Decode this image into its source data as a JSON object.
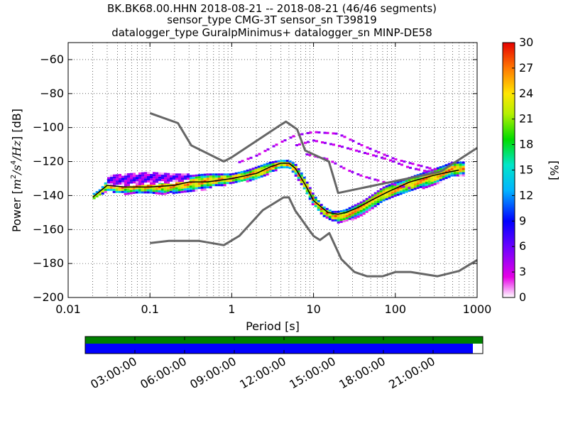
{
  "chart_data": [
    {
      "type": "heatmap",
      "title_lines": [
        "BK.BK68.00.HHN   2018-08-21 -- 2018-08-21  (46/46 segments)",
        "sensor_type CMG-3T sensor_sn T39819",
        "datalogger_type GuralpMinimus+ datalogger_sn MINP-DE58"
      ],
      "xlabel": "Period [s]",
      "ylabel": "Power [m²/s⁴/Hz] [dB]",
      "ylabel_parts": {
        "prefix": "Power [",
        "unit_base": "m",
        "unit_mid": "/s",
        "unit_hz": "/Hz",
        "sup2": "2",
        "sup4": "4",
        "suffix": "] [dB]"
      },
      "x_scale": "log",
      "xlim": [
        0.01,
        1000
      ],
      "ylim": [
        -200,
        -50
      ],
      "x_ticks": [
        0.01,
        0.1,
        1,
        10,
        100,
        1000
      ],
      "x_tick_labels": [
        "0.01",
        "0.1",
        "1",
        "10",
        "100",
        "1000"
      ],
      "y_ticks": [
        -200,
        -180,
        -160,
        -140,
        -120,
        -100,
        -80,
        -60
      ],
      "y_tick_labels": [
        "−200",
        "−180",
        "−160",
        "−140",
        "−120",
        "−100",
        "−80",
        "−60"
      ],
      "grid": true,
      "colorbar": {
        "label": "[%]",
        "range": [
          0,
          30
        ],
        "ticks": [
          0,
          3,
          6,
          9,
          12,
          15,
          18,
          21,
          24,
          27,
          30
        ],
        "tick_labels": [
          "0",
          "3",
          "6",
          "9",
          "12",
          "15",
          "18",
          "21",
          "24",
          "27",
          "30"
        ]
      },
      "series": [
        {
          "type": "line",
          "role": "mean",
          "color": "#000000",
          "x": [
            0.02,
            0.03,
            0.05,
            0.1,
            0.2,
            0.3,
            0.5,
            1,
            2,
            3,
            4,
            5,
            6,
            8,
            10,
            15,
            20,
            25,
            35,
            50,
            80,
            150,
            300,
            600
          ],
          "y": [
            -141,
            -134,
            -135,
            -135,
            -134,
            -132,
            -132,
            -130,
            -127,
            -123,
            -121,
            -121,
            -124,
            -134,
            -143,
            -150,
            -151,
            -150,
            -147,
            -143,
            -138,
            -132,
            -128,
            -125
          ]
        },
        {
          "type": "line",
          "role": "new-high-noise-model",
          "color": "#666666",
          "x": [
            0.1,
            0.22,
            0.32,
            0.8,
            1,
            3.8,
            4.6,
            6.3,
            7.9,
            15.4,
            20,
            354.8,
            1000
          ],
          "y": [
            -91.5,
            -97.4,
            -110.5,
            -120,
            -117.5,
            -99,
            -96.5,
            -101,
            -113.5,
            -120,
            -138.5,
            -126,
            -112
          ]
        },
        {
          "type": "line",
          "role": "new-low-noise-model",
          "color": "#666666",
          "x": [
            0.1,
            0.17,
            0.4,
            0.8,
            1.24,
            2.4,
            4.3,
            5,
            6,
            10,
            12,
            15.6,
            21.9,
            31.6,
            45,
            70,
            101,
            154,
            328,
            600,
            1000
          ],
          "y": [
            -168,
            -166.7,
            -166.7,
            -169.2,
            -163.7,
            -148.6,
            -141.1,
            -141.1,
            -149,
            -163.8,
            -166.2,
            -162.1,
            -177.5,
            -185,
            -187.5,
            -187.5,
            -185,
            -185,
            -187.5,
            -184.4,
            -178
          ]
        }
      ],
      "density_bands": [
        {
          "x": [
            0.02,
            0.025,
            0.03,
            0.04,
            0.05,
            0.07,
            0.1,
            0.15,
            0.2,
            0.3,
            0.5,
            0.8,
            1,
            1.5,
            2,
            3,
            4,
            5,
            6,
            8,
            10,
            13,
            17,
            20,
            25,
            30,
            40,
            50,
            70,
            100,
            150,
            200,
            300,
            400,
            500,
            700
          ],
          "y_low": [
            -143,
            -140,
            -137,
            -139,
            -139,
            -139,
            -139,
            -139,
            -139,
            -138,
            -136,
            -134,
            -133,
            -132,
            -131,
            -127,
            -124,
            -124,
            -128,
            -138,
            -146,
            -152,
            -155,
            -156,
            -155,
            -154,
            -151,
            -148,
            -144,
            -141,
            -138,
            -136,
            -134,
            -131,
            -129,
            -128
          ],
          "y_high": [
            -139,
            -136,
            -131,
            -131,
            -131,
            -130,
            -130,
            -131,
            -129,
            -128,
            -127,
            -127,
            -127,
            -125,
            -123,
            -120,
            -119,
            -119,
            -121,
            -130,
            -139,
            -146,
            -149,
            -149,
            -148,
            -146,
            -143,
            -140,
            -135,
            -132,
            -129,
            -127,
            -124,
            -122,
            -120,
            -120
          ]
        },
        {
          "x": [
            0.03,
            0.05,
            0.1,
            0.2,
            0.3
          ],
          "y_low": [
            -134,
            -134,
            -133,
            -132,
            -131
          ],
          "y_high": [
            -128,
            -127,
            -126,
            -127,
            -127
          ]
        }
      ],
      "outlier_traces": [
        {
          "x": [
            1.2,
            2,
            4,
            6,
            10,
            20,
            40,
            100,
            300
          ],
          "y": [
            -120,
            -116,
            -108,
            -104,
            -102,
            -103,
            -110,
            -118,
            -124
          ]
        },
        {
          "x": [
            6,
            10,
            20,
            40,
            80,
            150,
            300
          ],
          "y": [
            -110,
            -107,
            -110,
            -114,
            -118,
            -123,
            -126
          ]
        },
        {
          "x": [
            8,
            15,
            25,
            40,
            80,
            150
          ],
          "y": [
            -115,
            -118,
            -124,
            -128,
            -132,
            -135
          ]
        }
      ]
    },
    {
      "type": "timeline",
      "role": "data-coverage",
      "rows": [
        {
          "name": "green coverage",
          "color": "#008000",
          "coverage": [
            0,
            1
          ]
        },
        {
          "name": "blue coverage",
          "color": "#0000ff",
          "coverage": [
            0,
            0.975
          ]
        }
      ],
      "time_range_hours": [
        0,
        24
      ],
      "ticks_hours": [
        3,
        6,
        9,
        12,
        15,
        18,
        21
      ],
      "tick_labels": [
        "03:00:00",
        "06:00:00",
        "09:00:00",
        "12:00:00",
        "15:00:00",
        "18:00:00",
        "21:00:00"
      ]
    }
  ]
}
